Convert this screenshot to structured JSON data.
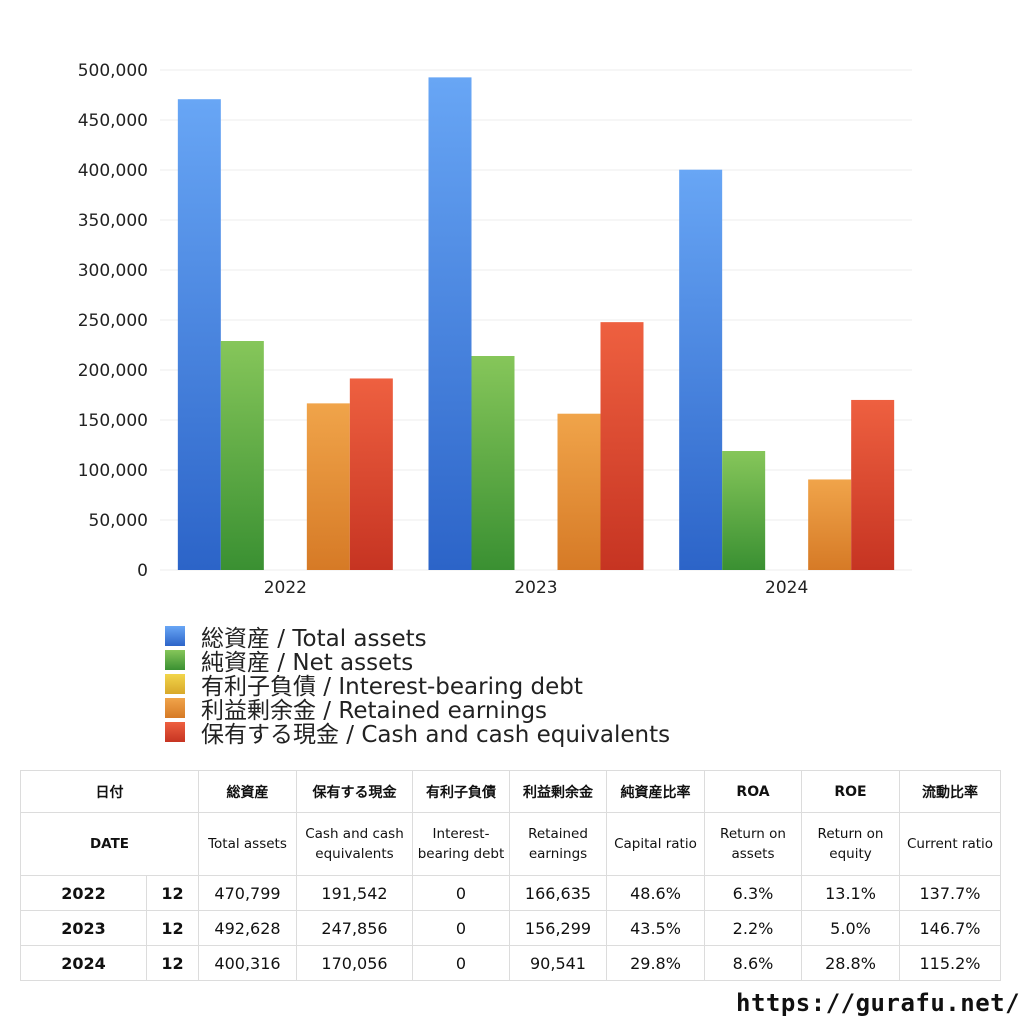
{
  "chart_data": {
    "type": "bar",
    "categories": [
      "2022",
      "2023",
      "2024"
    ],
    "ylim": [
      0,
      500000
    ],
    "yticks": [
      "0",
      "50,000",
      "100,000",
      "150,000",
      "200,000",
      "250,000",
      "300,000",
      "350,000",
      "400,000",
      "450,000",
      "500,000"
    ],
    "grid": true,
    "legend_position": "bottom",
    "series": [
      {
        "name": "総資産 / Total assets",
        "values": [
          470799,
          492628,
          400316
        ],
        "color_top": "#68a6f5",
        "color_bottom": "#2c64c8"
      },
      {
        "name": "純資産 / Net assets",
        "values": [
          229000,
          214000,
          119000
        ],
        "color_top": "#86c65a",
        "color_bottom": "#3a9032"
      },
      {
        "name": "有利子負債 / Interest-bearing debt",
        "values": [
          0,
          0,
          0
        ],
        "color_top": "#f2d54a",
        "color_bottom": "#d8a82a"
      },
      {
        "name": "利益剰余金 / Retained earnings",
        "values": [
          166635,
          156299,
          90541
        ],
        "color_top": "#f0a44a",
        "color_bottom": "#d67a26"
      },
      {
        "name": "保有する現金 /  Cash and cash equivalents",
        "values": [
          191542,
          247856,
          170056
        ],
        "color_top": "#ee6040",
        "color_bottom": "#c63422"
      }
    ]
  },
  "table": {
    "header_jp": [
      "日付",
      "総資産",
      "保有する現金",
      "有利子負債",
      "利益剰余金",
      "純資産比率",
      "ROA",
      "ROE",
      "流動比率"
    ],
    "header_en": [
      "DATE",
      "Total assets",
      "Cash and cash equivalents",
      "Interest-bearing debt",
      "Retained earnings",
      "Capital ratio",
      "Return on assets",
      "Return on equity",
      "Current ratio"
    ],
    "rows": [
      {
        "year": "2022",
        "month": "12",
        "total_assets": "470,799",
        "cash": "191,542",
        "debt": "0",
        "retained": "166,635",
        "capital_ratio": "48.6%",
        "roa": "6.3%",
        "roe": "13.1%",
        "current_ratio": "137.7%"
      },
      {
        "year": "2023",
        "month": "12",
        "total_assets": "492,628",
        "cash": "247,856",
        "debt": "0",
        "retained": "156,299",
        "capital_ratio": "43.5%",
        "roa": "2.2%",
        "roe": "5.0%",
        "current_ratio": "146.7%"
      },
      {
        "year": "2024",
        "month": "12",
        "total_assets": "400,316",
        "cash": "170,056",
        "debt": "0",
        "retained": "90,541",
        "capital_ratio": "29.8%",
        "roa": "8.6%",
        "roe": "28.8%",
        "current_ratio": "115.2%"
      }
    ]
  },
  "footer": {
    "url": "https://gurafu.net/"
  }
}
